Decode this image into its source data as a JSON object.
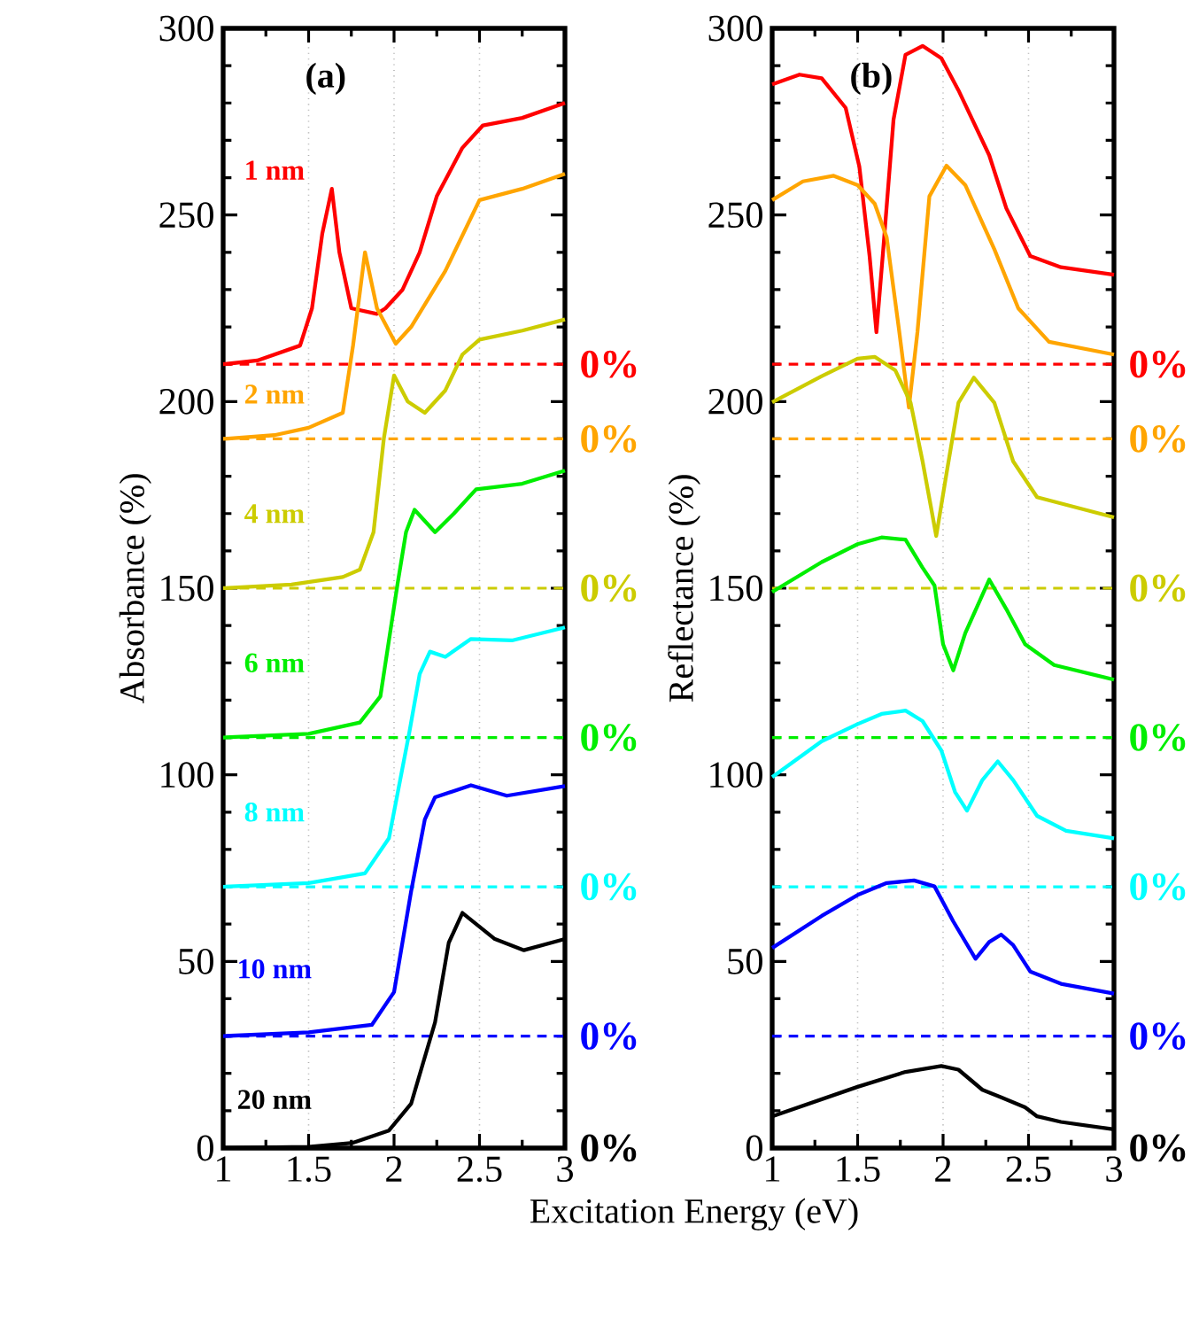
{
  "chart_data": [
    {
      "type": "line",
      "ylabel": "Absorbance (%)",
      "xlabel": "Excitation Energy (eV)",
      "annotations": [
        "(a)",
        "0%",
        "0%",
        "0%",
        "0%",
        "0%",
        "0%",
        "0%"
      ],
      "grid": "x",
      "line_style": "solid",
      "xlim": [
        1,
        3
      ],
      "ylim": [
        0,
        300
      ],
      "xticks": [
        1,
        1.5,
        2,
        2.5,
        3
      ],
      "yticks": [
        0,
        50,
        100,
        150,
        200,
        250,
        300
      ],
      "series": [
        {
          "name": "1 nm",
          "color": "#ff0000",
          "x": [
            1,
            1.2,
            1.45,
            1.52,
            1.58,
            1.636,
            1.68,
            1.75,
            1.9,
            1.95,
            2.05,
            2.15,
            2.25,
            2.4,
            2.52,
            2.75,
            3
          ],
          "values": [
            210,
            211,
            215,
            225,
            245,
            257,
            240,
            225,
            223.5,
            225,
            230,
            240,
            255,
            268,
            274,
            276,
            280
          ]
        },
        {
          "name": "2 nm",
          "color": "#ffa500",
          "x": [
            1,
            1.3,
            1.5,
            1.7,
            1.76,
            1.83,
            1.9,
            2.01,
            2.1,
            2.3,
            2.5,
            2.75,
            3
          ],
          "values": [
            190,
            191,
            193,
            197,
            215,
            240,
            225,
            215.5,
            220,
            235,
            254,
            257,
            261
          ]
        },
        {
          "name": "4 nm",
          "color": "#cccc00",
          "x": [
            1,
            1.4,
            1.7,
            1.8,
            1.88,
            1.94,
            2.0,
            2.08,
            2.18,
            2.3,
            2.4,
            2.5,
            2.75,
            3
          ],
          "values": [
            150,
            151,
            153,
            155,
            165,
            190,
            207,
            200,
            197,
            203,
            212.6,
            216.6,
            219,
            222
          ]
        },
        {
          "name": "6 nm",
          "color": "#00ee00",
          "x": [
            1,
            1.5,
            1.8,
            1.92,
            2.02,
            2.07,
            2.12,
            2.24,
            2.35,
            2.48,
            2.75,
            3
          ],
          "values": [
            110,
            111,
            114,
            121,
            151,
            165,
            171,
            165,
            170,
            176.5,
            178,
            181.5
          ]
        },
        {
          "name": "8 nm",
          "color": "#00ffff",
          "x": [
            1,
            1.5,
            1.83,
            1.97,
            2.09,
            2.15,
            2.21,
            2.3,
            2.45,
            2.69,
            3
          ],
          "values": [
            70,
            71,
            73.6,
            83,
            111.5,
            127,
            133,
            131.6,
            136.4,
            136,
            139.5
          ]
        },
        {
          "name": "10 nm",
          "color": "#0000ff",
          "x": [
            1,
            1.5,
            1.87,
            2.0,
            2.1,
            2.18,
            2.24,
            2.45,
            2.66,
            3
          ],
          "values": [
            30,
            31,
            33,
            41.8,
            68.8,
            88,
            94,
            97.2,
            94.4,
            97
          ]
        },
        {
          "name": "20 nm",
          "color": "#000000",
          "x": [
            1,
            1.5,
            1.76,
            1.97,
            2.1,
            2.24,
            2.32,
            2.4,
            2.59,
            2.76,
            3
          ],
          "values": [
            0,
            0.3,
            1.4,
            4.7,
            11.9,
            33.7,
            55,
            63,
            56,
            53,
            56
          ]
        }
      ],
      "ref_lines": [
        {
          "axis": "y",
          "value": 210,
          "color": "#ff0000",
          "line_style": "dashed"
        },
        {
          "axis": "y",
          "value": 190,
          "color": "#ffa500",
          "line_style": "dashed"
        },
        {
          "axis": "y",
          "value": 150,
          "color": "#cccc00",
          "line_style": "dashed"
        },
        {
          "axis": "y",
          "value": 110,
          "color": "#00ee00",
          "line_style": "dashed"
        },
        {
          "axis": "y",
          "value": 70,
          "color": "#00ffff",
          "line_style": "dashed"
        },
        {
          "axis": "y",
          "value": 30,
          "color": "#0000ff",
          "line_style": "dashed"
        }
      ]
    },
    {
      "type": "line",
      "ylabel": "Reflectance (%)",
      "annotations": [
        "(b)",
        "0%",
        "0%",
        "0%",
        "0%",
        "0%",
        "0%",
        "0%"
      ],
      "grid": "x",
      "line_style": "solid",
      "xlim": [
        1,
        3
      ],
      "ylim": [
        0,
        300
      ],
      "xticks": [
        1,
        1.5,
        2,
        2.5,
        3
      ],
      "yticks": [
        0,
        50,
        100,
        150,
        200,
        250,
        300
      ],
      "series": [
        {
          "color": "#ff0000",
          "x": [
            1,
            1.16,
            1.29,
            1.43,
            1.51,
            1.57,
            1.61,
            1.65,
            1.71,
            1.78,
            1.88,
            1.99,
            2.09,
            2.27,
            2.37,
            2.51,
            2.69,
            3
          ],
          "values": [
            285,
            287.6,
            286.6,
            278.7,
            263,
            239,
            218.6,
            240.8,
            275.5,
            292.9,
            295.3,
            292,
            283.4,
            266,
            251.8,
            239,
            236,
            234
          ]
        },
        {
          "color": "#ffa500",
          "x": [
            1,
            1.18,
            1.36,
            1.5,
            1.6,
            1.67,
            1.74,
            1.8,
            1.85,
            1.92,
            2.02,
            2.13,
            2.3,
            2.44,
            2.62,
            3
          ],
          "values": [
            254,
            259,
            260.5,
            258,
            253,
            244,
            220,
            198.4,
            218.6,
            255,
            263.2,
            258,
            240.8,
            225,
            216,
            212.6
          ]
        },
        {
          "color": "#cccc00",
          "x": [
            1,
            1.29,
            1.5,
            1.6,
            1.72,
            1.81,
            1.88,
            1.96,
            2.02,
            2.09,
            2.18,
            2.3,
            2.41,
            2.55,
            3
          ],
          "values": [
            199.8,
            206.8,
            211.5,
            212,
            208.4,
            199.7,
            184,
            164,
            180.7,
            199.7,
            206.4,
            199.7,
            184,
            174.4,
            169
          ]
        },
        {
          "color": "#00ee00",
          "x": [
            1,
            1.29,
            1.5,
            1.64,
            1.78,
            1.88,
            1.95,
            2.0,
            2.06,
            2.13,
            2.27,
            2.37,
            2.48,
            2.65,
            3
          ],
          "values": [
            149,
            157,
            161.8,
            163.6,
            163,
            155.5,
            150.7,
            135,
            128,
            138,
            152.3,
            144.4,
            135,
            129.4,
            125.5
          ]
        },
        {
          "color": "#00ffff",
          "x": [
            1,
            1.29,
            1.5,
            1.64,
            1.78,
            1.88,
            1.99,
            2.07,
            2.14,
            2.23,
            2.32,
            2.41,
            2.55,
            2.72,
            3
          ],
          "values": [
            99.4,
            109,
            113.6,
            116.3,
            117.2,
            114.4,
            106.5,
            95.4,
            90.4,
            98.6,
            103.6,
            98.6,
            89,
            85,
            83
          ]
        },
        {
          "color": "#0000ff",
          "x": [
            1,
            1.29,
            1.5,
            1.67,
            1.83,
            1.95,
            2.06,
            2.19,
            2.27,
            2.34,
            2.41,
            2.51,
            2.69,
            3
          ],
          "values": [
            53.6,
            62.2,
            67.8,
            71,
            71.7,
            70.1,
            60.7,
            50.7,
            55.2,
            57.2,
            54.4,
            47.3,
            44,
            41.4
          ]
        },
        {
          "color": "#000000",
          "x": [
            1,
            1.5,
            1.78,
            1.99,
            2.09,
            2.23,
            2.34,
            2.48,
            2.55,
            2.69,
            3
          ],
          "values": [
            8.5,
            16.4,
            20.4,
            22,
            21,
            15.6,
            13.6,
            10.9,
            8.5,
            7,
            5
          ]
        }
      ],
      "ref_lines": [
        {
          "axis": "y",
          "value": 210,
          "color": "#ff0000",
          "line_style": "dashed"
        },
        {
          "axis": "y",
          "value": 190,
          "color": "#ffa500",
          "line_style": "dashed"
        },
        {
          "axis": "y",
          "value": 150,
          "color": "#cccc00",
          "line_style": "dashed"
        },
        {
          "axis": "y",
          "value": 110,
          "color": "#00ee00",
          "line_style": "dashed"
        },
        {
          "axis": "y",
          "value": 70,
          "color": "#00ffff",
          "line_style": "dashed"
        },
        {
          "axis": "y",
          "value": 30,
          "color": "#0000ff",
          "line_style": "dashed"
        }
      ]
    }
  ]
}
